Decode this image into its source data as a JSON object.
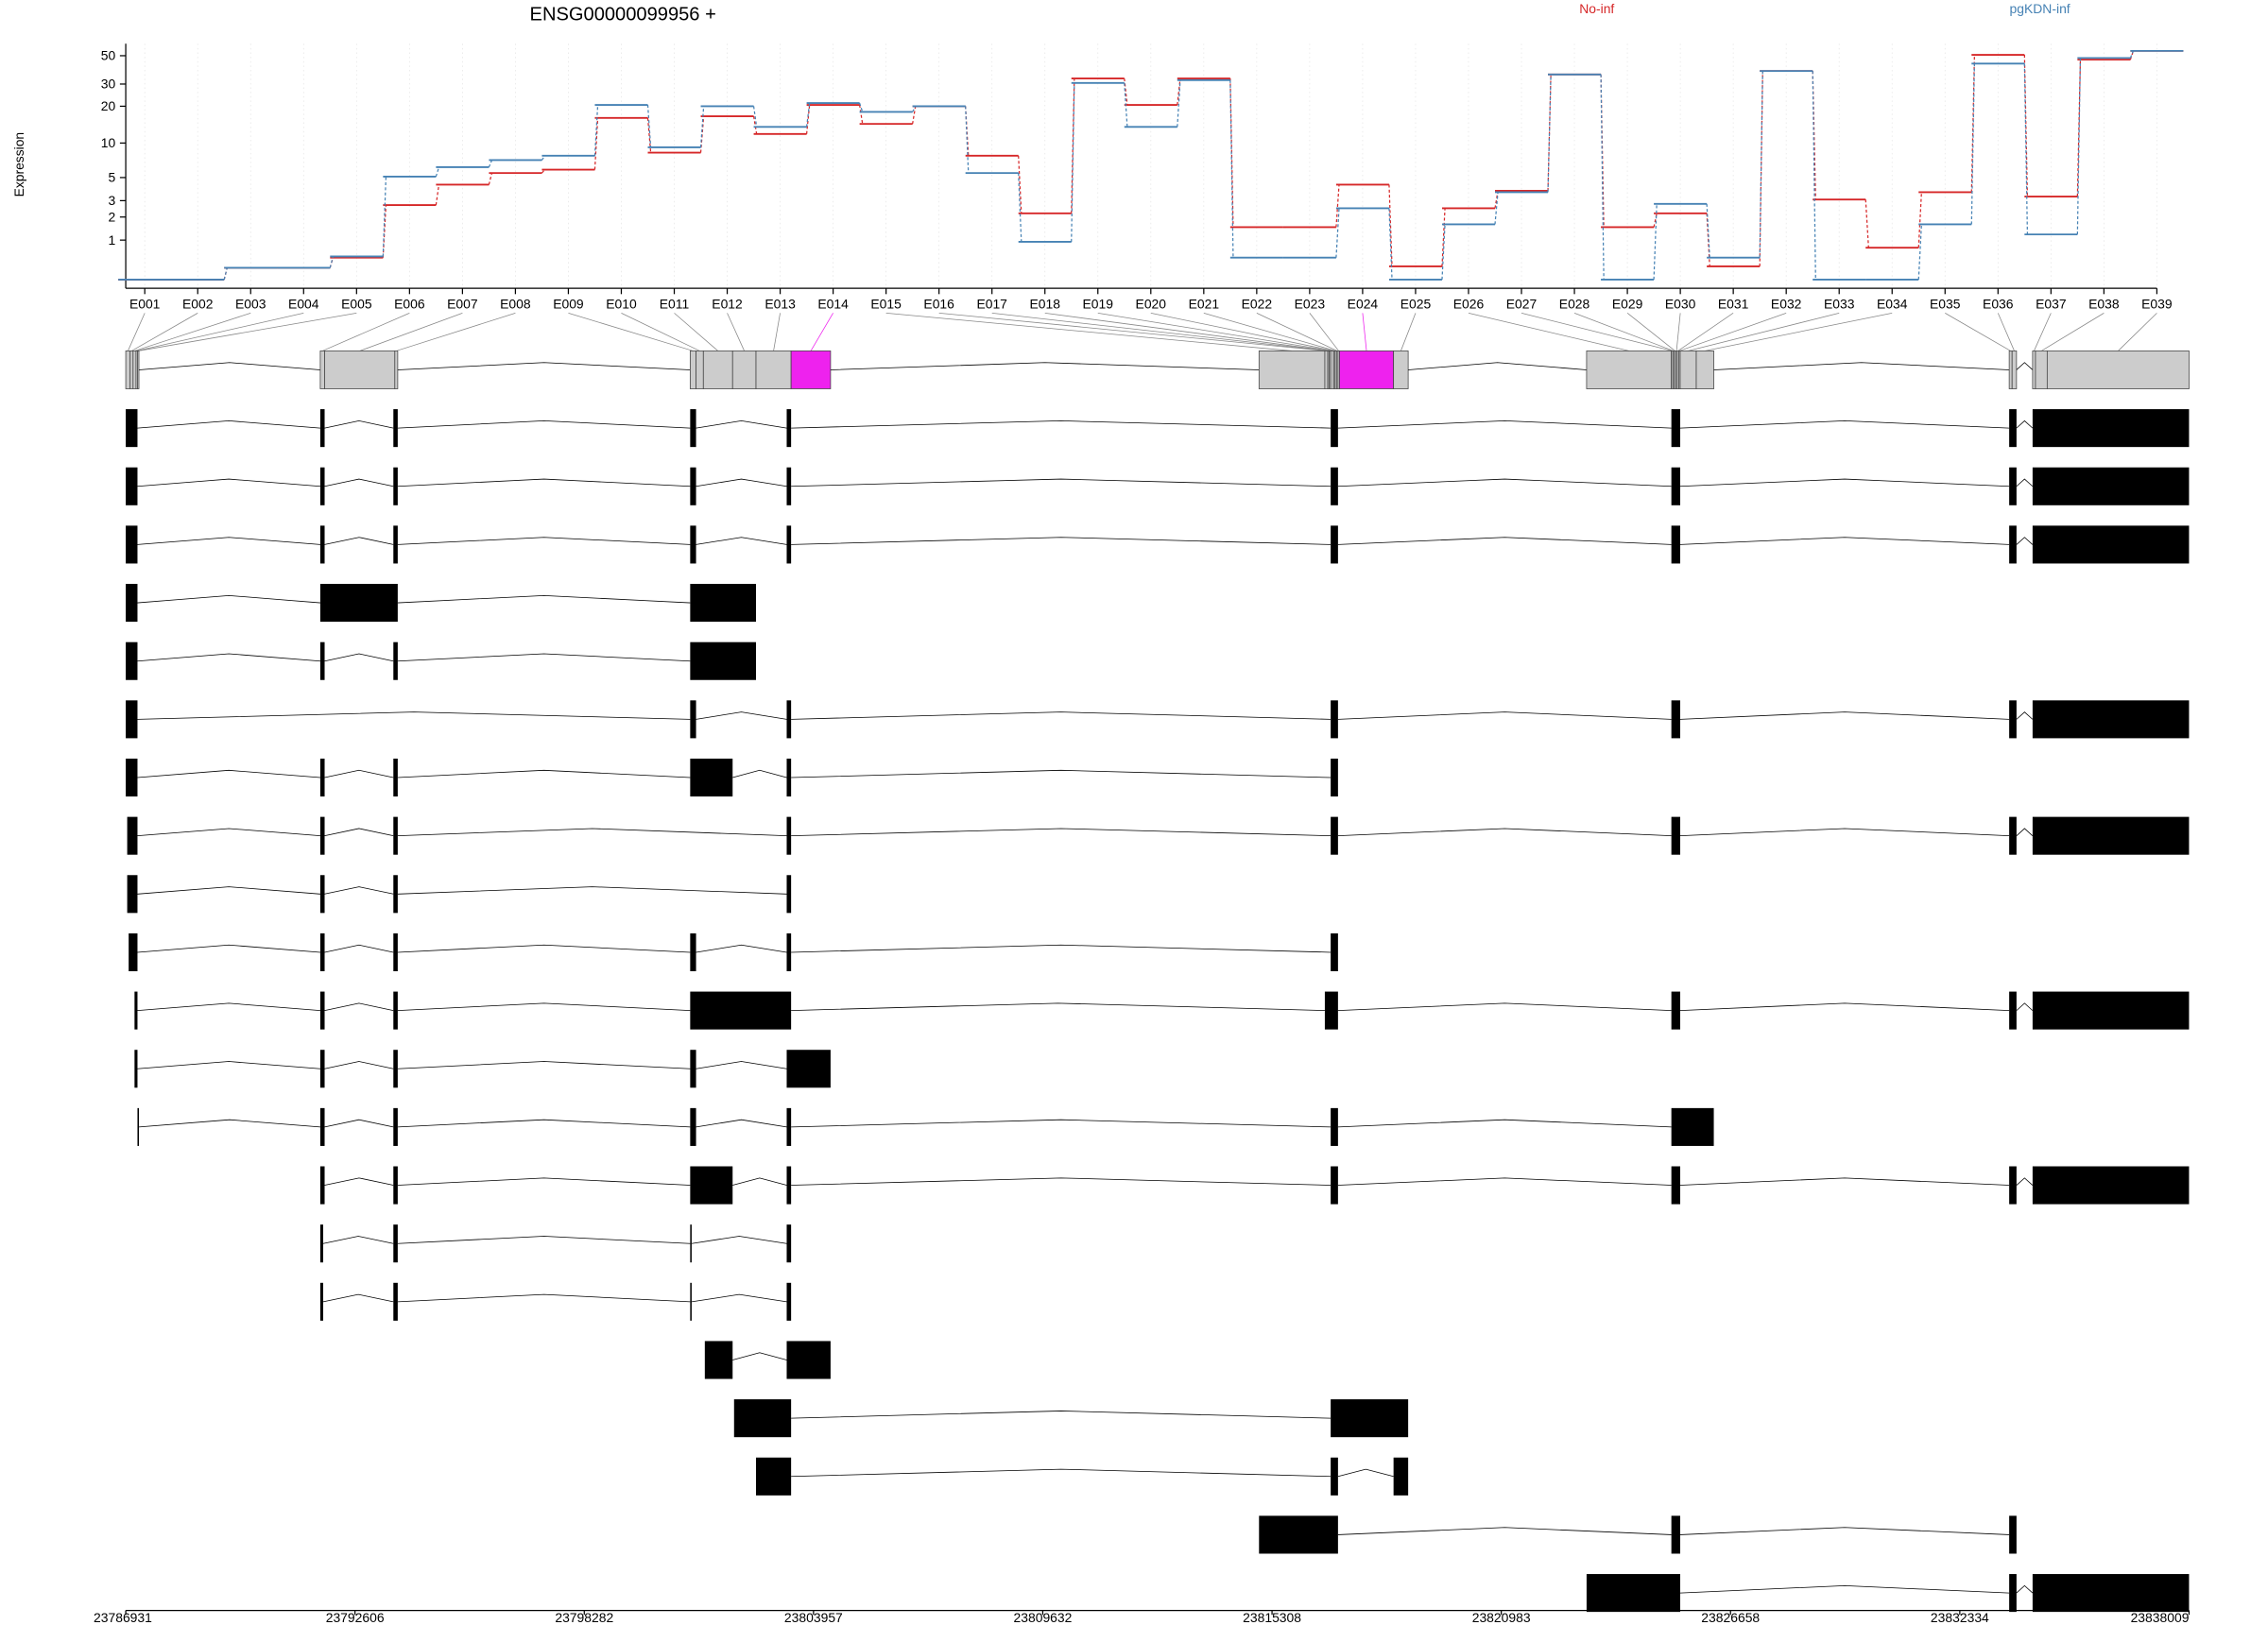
{
  "chart_data": {
    "type": "line",
    "title": "ENSG00000099956 +",
    "y_label": "Expression",
    "log_scale": true,
    "ylim": [
      0,
      62
    ],
    "yticks": [
      1,
      2,
      3,
      5,
      10,
      20,
      30,
      50
    ],
    "grid": true,
    "categories": [
      "E001",
      "E002",
      "E003",
      "E004",
      "E005",
      "E006",
      "E007",
      "E008",
      "E009",
      "E010",
      "E011",
      "E012",
      "E013",
      "E014",
      "E015",
      "E016",
      "E017",
      "E018",
      "E019",
      "E020",
      "E021",
      "E022",
      "E023",
      "E024",
      "E025",
      "E026",
      "E027",
      "E028",
      "E029",
      "E030",
      "E031",
      "E032",
      "E033",
      "E034",
      "E035",
      "E036",
      "E037",
      "E038",
      "E039"
    ],
    "series": [
      {
        "name": "No-inf",
        "color": "#d62728",
        "values": [
          0,
          0,
          0.23,
          0.23,
          0.47,
          2.7,
          4.3,
          5.5,
          5.9,
          16.1,
          8.3,
          16.6,
          11.9,
          20.5,
          14.4,
          20,
          7.8,
          2.2,
          33.2,
          20.5,
          33.2,
          1.51,
          1.51,
          4.3,
          0.26,
          2.5,
          3.76,
          35.7,
          1.51,
          2.2,
          0.26,
          38,
          3.08,
          0.75,
          3.64,
          50.8,
          3.3,
          46.6,
          54.5
        ]
      },
      {
        "name": "pgKDN-inf",
        "color": "#4682b4",
        "values": [
          0,
          0,
          0.23,
          0.23,
          0.5,
          5.1,
          6.2,
          7.15,
          7.8,
          20.5,
          9.2,
          20,
          13.6,
          21.2,
          18,
          20,
          5.5,
          0.94,
          30.6,
          13.6,
          32.2,
          0.47,
          0.47,
          2.5,
          0,
          1.64,
          3.64,
          35.7,
          0,
          2.78,
          0.47,
          38,
          0,
          0,
          1.64,
          43.4,
          1.21,
          48,
          54.5
        ]
      }
    ],
    "xlim": [
      23786931,
      23838009
    ],
    "xticks": [
      23786931,
      23792606,
      23798282,
      23803957,
      23809632,
      23815308,
      23820983,
      23826658,
      23832334,
      23838009
    ],
    "bin_color": "#cccccc",
    "highlight": [
      "E014",
      "E024"
    ],
    "highlight_color": "#ee22ee",
    "exon_bins": [
      [
        23786931,
        23787040
      ],
      [
        23787040,
        23787112
      ],
      [
        23787112,
        23787184
      ],
      [
        23787184,
        23787221
      ],
      [
        23787221,
        23787257
      ],
      [
        23791746,
        23791854
      ],
      [
        23791854,
        23793592
      ],
      [
        23793592,
        23793664
      ],
      [
        23800904,
        23801049
      ],
      [
        23801049,
        23801230
      ],
      [
        23801230,
        23801954
      ],
      [
        23801954,
        23802533
      ],
      [
        23802533,
        23803402
      ],
      [
        23803402,
        23804379
      ],
      [
        23814986,
        23816615
      ],
      [
        23816615,
        23816687
      ],
      [
        23816687,
        23816724
      ],
      [
        23816724,
        23816760
      ],
      [
        23816760,
        23816832
      ],
      [
        23816832,
        23816868
      ],
      [
        23816868,
        23816905
      ],
      [
        23816905,
        23816941
      ],
      [
        23816941,
        23816977
      ],
      [
        23816977,
        23818316
      ],
      [
        23818316,
        23818678
      ],
      [
        23823095,
        23825194
      ],
      [
        23825194,
        23825231
      ],
      [
        23825231,
        23825267
      ],
      [
        23825267,
        23825303
      ],
      [
        23825303,
        23825339
      ],
      [
        23825339,
        23825375
      ],
      [
        23825375,
        23825412
      ],
      [
        23825412,
        23825810
      ],
      [
        23825810,
        23826244
      ],
      [
        23833557,
        23833629
      ],
      [
        23833629,
        23833738
      ],
      [
        23834136,
        23834208
      ],
      [
        23834208,
        23834498
      ],
      [
        23834498,
        23838009
      ]
    ],
    "transcripts": [
      [
        [
          23786931,
          23787221
        ],
        [
          23791746,
          23791854
        ],
        [
          23793556,
          23793664
        ],
        [
          23800904,
          23801049
        ],
        [
          23803293,
          23803402
        ],
        [
          23816760,
          23816941
        ],
        [
          23825194,
          23825412
        ],
        [
          23833557,
          23833738
        ],
        [
          23834136,
          23838009
        ]
      ],
      [
        [
          23786931,
          23787221
        ],
        [
          23791746,
          23791854
        ],
        [
          23793556,
          23793664
        ],
        [
          23800904,
          23801049
        ],
        [
          23803293,
          23803402
        ],
        [
          23816760,
          23816941
        ],
        [
          23825194,
          23825412
        ],
        [
          23833557,
          23833738
        ],
        [
          23834136,
          23838009
        ]
      ],
      [
        [
          23786931,
          23787221
        ],
        [
          23791746,
          23791854
        ],
        [
          23793556,
          23793664
        ],
        [
          23800904,
          23801049
        ],
        [
          23803293,
          23803402
        ],
        [
          23816760,
          23816941
        ],
        [
          23825194,
          23825412
        ],
        [
          23833557,
          23833738
        ],
        [
          23834136,
          23838009
        ]
      ],
      [
        [
          23786931,
          23787221
        ],
        [
          23791746,
          23793664
        ],
        [
          23800904,
          23802533
        ]
      ],
      [
        [
          23786931,
          23787221
        ],
        [
          23791746,
          23791854
        ],
        [
          23793556,
          23793664
        ],
        [
          23800904,
          23802533
        ]
      ],
      [
        [
          23786931,
          23787221
        ],
        [
          23800904,
          23801049
        ],
        [
          23803293,
          23803402
        ],
        [
          23816760,
          23816941
        ],
        [
          23825194,
          23825412
        ],
        [
          23833557,
          23833738
        ],
        [
          23834136,
          23838009
        ]
      ],
      [
        [
          23786931,
          23787221
        ],
        [
          23791746,
          23791854
        ],
        [
          23793556,
          23793664
        ],
        [
          23800904,
          23801954
        ],
        [
          23803293,
          23803402
        ],
        [
          23816760,
          23816941
        ]
      ],
      [
        [
          23786967,
          23787221
        ],
        [
          23791746,
          23791854
        ],
        [
          23793556,
          23793664
        ],
        [
          23803293,
          23803402
        ],
        [
          23816760,
          23816941
        ],
        [
          23825194,
          23825412
        ],
        [
          23833557,
          23833738
        ],
        [
          23834136,
          23838009
        ]
      ],
      [
        [
          23786967,
          23787221
        ],
        [
          23791746,
          23791854
        ],
        [
          23793556,
          23793664
        ],
        [
          23803293,
          23803402
        ]
      ],
      [
        [
          23787003,
          23787221
        ],
        [
          23791746,
          23791854
        ],
        [
          23793556,
          23793664
        ],
        [
          23800904,
          23801049
        ],
        [
          23803293,
          23803402
        ],
        [
          23816760,
          23816941
        ]
      ],
      [
        [
          23787148,
          23787221
        ],
        [
          23791746,
          23791854
        ],
        [
          23793556,
          23793664
        ],
        [
          23800904,
          23803402
        ],
        [
          23816615,
          23816941
        ],
        [
          23825194,
          23825412
        ],
        [
          23833557,
          23833738
        ],
        [
          23834136,
          23838009
        ]
      ],
      [
        [
          23787148,
          23787221
        ],
        [
          23791746,
          23791854
        ],
        [
          23793556,
          23793664
        ],
        [
          23800904,
          23801049
        ],
        [
          23803293,
          23804379
        ]
      ],
      [
        [
          23787221,
          23787257
        ],
        [
          23791746,
          23791854
        ],
        [
          23793556,
          23793664
        ],
        [
          23800904,
          23801049
        ],
        [
          23803293,
          23803402
        ],
        [
          23816760,
          23816941
        ],
        [
          23825194,
          23826244
        ]
      ],
      [
        [
          23791746,
          23791854
        ],
        [
          23793556,
          23793664
        ],
        [
          23800904,
          23801954
        ],
        [
          23803293,
          23803402
        ],
        [
          23816760,
          23816941
        ],
        [
          23825194,
          23825412
        ],
        [
          23833557,
          23833738
        ],
        [
          23834136,
          23838009
        ]
      ],
      [
        [
          23791746,
          23791818
        ],
        [
          23793556,
          23793664
        ],
        [
          23800904,
          23800940
        ],
        [
          23803293,
          23803402
        ]
      ],
      [
        [
          23791746,
          23791818
        ],
        [
          23793556,
          23793664
        ],
        [
          23800904,
          23800940
        ],
        [
          23803293,
          23803402
        ]
      ],
      [
        [
          23801266,
          23801954
        ],
        [
          23803293,
          23804379
        ]
      ],
      [
        [
          23801990,
          23803402
        ],
        [
          23816760,
          23818678
        ]
      ],
      [
        [
          23802533,
          23803402
        ],
        [
          23816760,
          23816941
        ],
        [
          23818316,
          23818678
        ]
      ],
      [
        [
          23814986,
          23816941
        ],
        [
          23825194,
          23825412
        ],
        [
          23833557,
          23833738
        ]
      ],
      [
        [
          23823095,
          23825412
        ],
        [
          23833557,
          23833738
        ],
        [
          23834136,
          23838009
        ]
      ]
    ]
  }
}
